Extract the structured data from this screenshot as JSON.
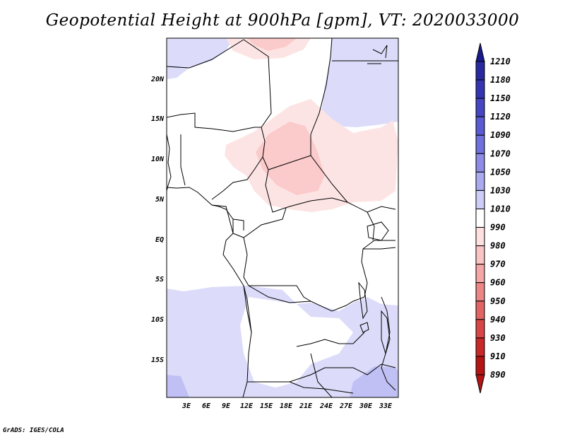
{
  "title": "Geopotential Height at 900hPa [gpm], VT: 2020033000",
  "credit": "GrADS: IGES/COLA",
  "map": {
    "lat_labels": [
      "20N",
      "15N",
      "10N",
      "5N",
      "EQ",
      "5S",
      "10S",
      "15S"
    ],
    "lon_labels": [
      "3E",
      "6E",
      "9E",
      "12E",
      "15E",
      "18E",
      "21E",
      "24E",
      "27E",
      "30E",
      "33E"
    ]
  },
  "colorbar": {
    "levels": [
      "1210",
      "1180",
      "1150",
      "1120",
      "1090",
      "1070",
      "1050",
      "1030",
      "1010",
      "990",
      "980",
      "970",
      "960",
      "950",
      "940",
      "930",
      "910",
      "890"
    ],
    "colors": [
      "#1a1a8c",
      "#2828a0",
      "#3535b4",
      "#4646c4",
      "#5a5ad2",
      "#7070dc",
      "#8c8ce6",
      "#aaaaf0",
      "#cdcdf8",
      "#ffffff",
      "#ffe0e0",
      "#fbc4c4",
      "#f4a6a6",
      "#ec8686",
      "#e26464",
      "#d84646",
      "#c82828",
      "#b41414"
    ]
  }
}
